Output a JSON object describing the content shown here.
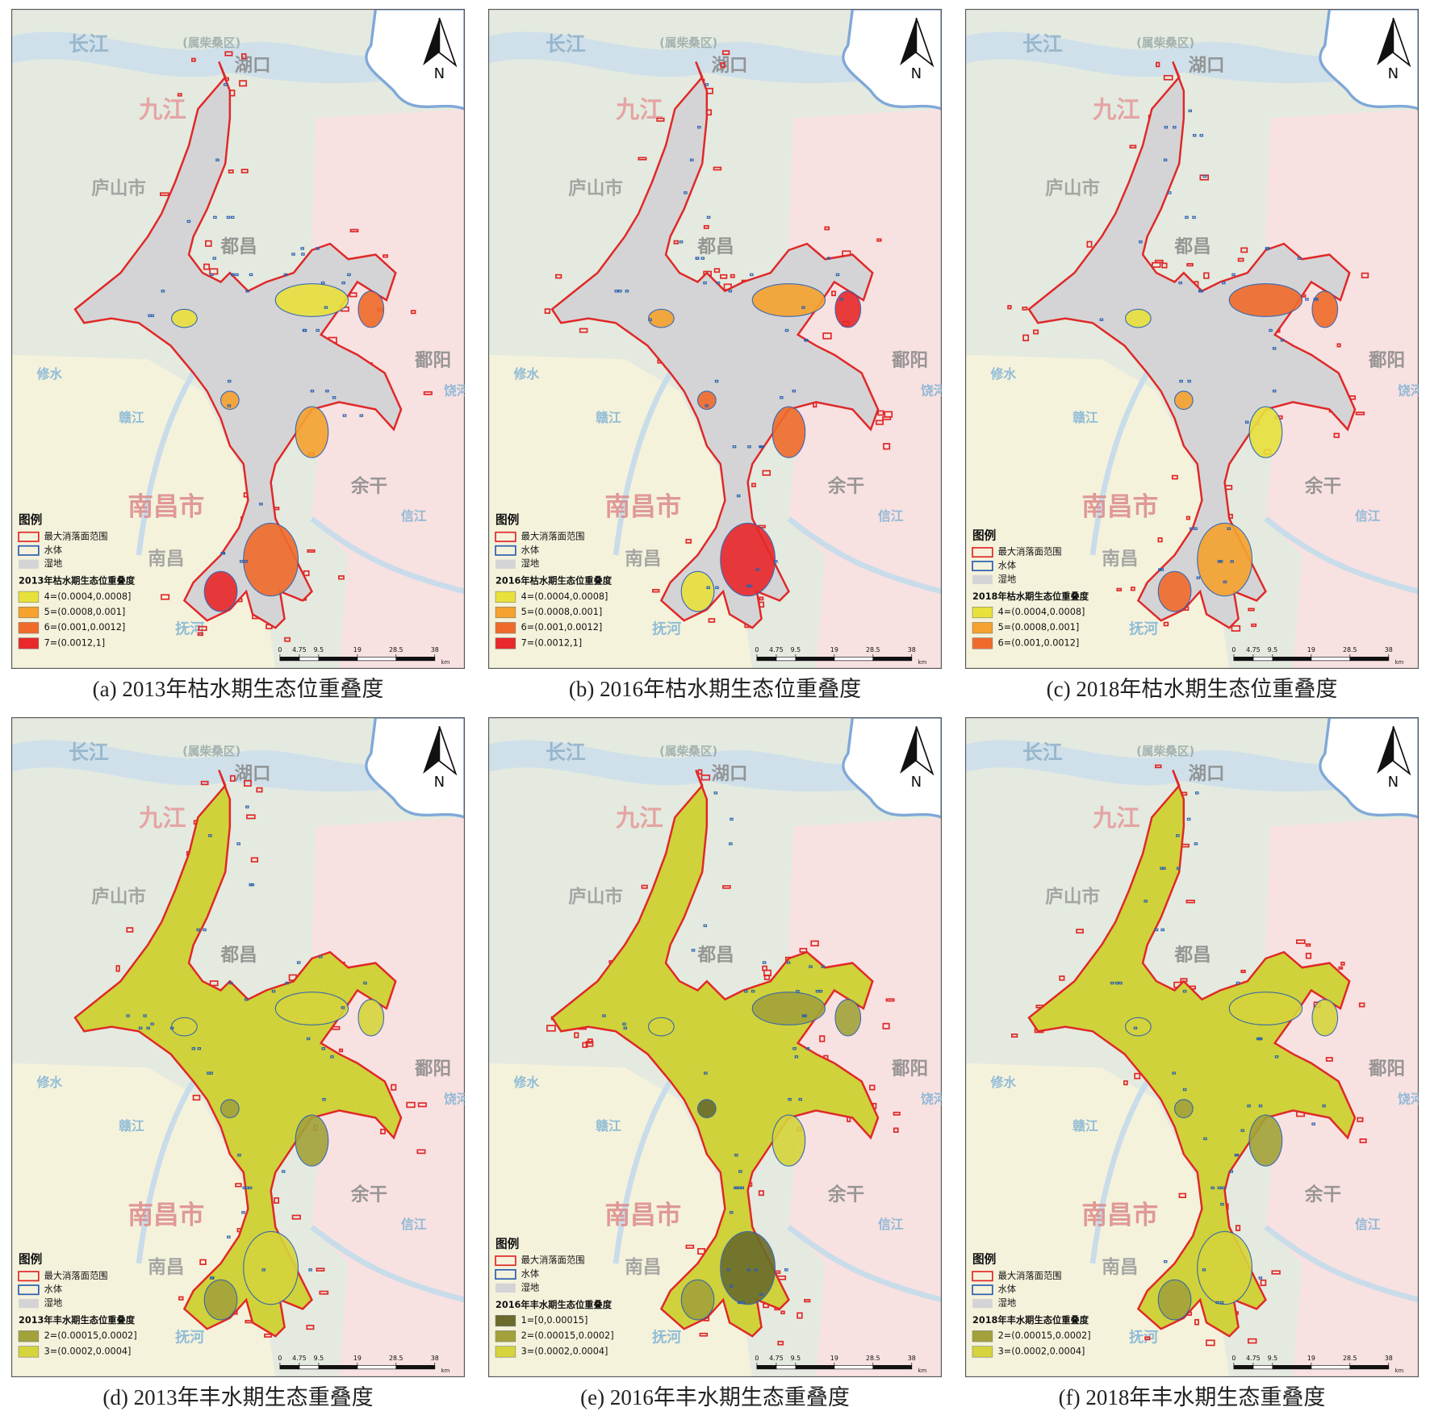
{
  "map_labels": [
    "长江",
    "(属柴桑区)",
    "湖口",
    "九江",
    "庐山市",
    "都昌",
    "鄱阳",
    "修水",
    "饶河",
    "赣江",
    "余干",
    "南昌市",
    "南昌",
    "信江",
    "抚河"
  ],
  "compass": "N",
  "scale_bar": {
    "ticks": [
      0,
      4.75,
      9.5,
      19,
      28.5,
      38
    ],
    "unit": "km"
  },
  "legend_common": {
    "title": "图例",
    "items": [
      "最大消落面范围",
      "水体",
      "湿地"
    ]
  },
  "panels": [
    {
      "caption": "(a) 2013年枯水期生态位重叠度",
      "legend_title": "2013年枯水期生态位重叠度",
      "lake_fill": "#d4d4d6",
      "classes": [
        {
          "label": "4=(0.0004,0.0008]",
          "color": "#e8e13c"
        },
        {
          "label": "5=(0.0008,0.001]",
          "color": "#f5a22e"
        },
        {
          "label": "6=(0.001,0.0012]",
          "color": "#f06b2b"
        },
        {
          "label": "7=(0.0012,1]",
          "color": "#e8282b"
        }
      ]
    },
    {
      "caption": "(b) 2016年枯水期生态位重叠度",
      "legend_title": "2016年枯水期生态位重叠度",
      "lake_fill": "#d4d4d6",
      "classes": [
        {
          "label": "4=(0.0004,0.0008]",
          "color": "#e8e13c"
        },
        {
          "label": "5=(0.0008,0.001]",
          "color": "#f5a22e"
        },
        {
          "label": "6=(0.001,0.0012]",
          "color": "#f06b2b"
        },
        {
          "label": "7=(0.0012,1]",
          "color": "#e8282b"
        }
      ]
    },
    {
      "caption": "(c) 2018年枯水期生态位重叠度",
      "legend_title": "2018年枯水期生态位重叠度",
      "lake_fill": "#d4d4d6",
      "classes": [
        {
          "label": "4=(0.0004,0.0008]",
          "color": "#e8e13c"
        },
        {
          "label": "5=(0.0008,0.001]",
          "color": "#f5a22e"
        },
        {
          "label": "6=(0.001,0.0012]",
          "color": "#f06b2b"
        }
      ]
    },
    {
      "caption": "(d) 2013年丰水期生态重叠度",
      "legend_title": "2013年丰水期生态位重叠度",
      "lake_fill": "#cfd23a",
      "classes": [
        {
          "label": "2=(0.00015,0.0002]",
          "color": "#a3a23a"
        },
        {
          "label": "3=(0.0002,0.0004]",
          "color": "#d6d43c"
        }
      ]
    },
    {
      "caption": "(e) 2016年丰水期生态重叠度",
      "legend_title": "2016年丰水期生态位重叠度",
      "lake_fill": "#cfd23a",
      "classes": [
        {
          "label": "1=[0,0.00015]",
          "color": "#6b6b2c"
        },
        {
          "label": "2=(0.00015,0.0002]",
          "color": "#a3a23a"
        },
        {
          "label": "3=(0.0002,0.0004]",
          "color": "#d6d43c"
        }
      ]
    },
    {
      "caption": "(f) 2018年丰水期生态重叠度",
      "legend_title": "2018年丰水期生态位重叠度",
      "lake_fill": "#cfd23a",
      "classes": [
        {
          "label": "2=(0.00015,0.0002]",
          "color": "#a3a23a"
        },
        {
          "label": "3=(0.0002,0.0004]",
          "color": "#d6d43c"
        }
      ]
    }
  ]
}
